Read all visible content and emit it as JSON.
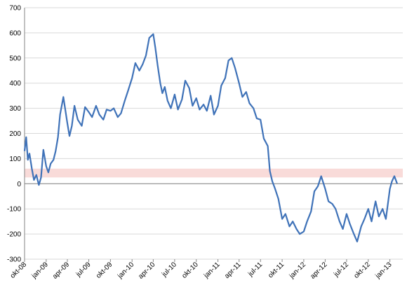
{
  "chart_data": {
    "type": "line",
    "title": "",
    "xlabel": "",
    "ylabel": "",
    "ylim": [
      -300,
      700
    ],
    "y_ticks": [
      700,
      600,
      500,
      400,
      300,
      200,
      100,
      0,
      -100,
      -200,
      -300
    ],
    "grid": "horizontal",
    "x_tick_labels": [
      "okt-08",
      "jan-09",
      "apr-09",
      "jul-09",
      "okt-09",
      "jan-10",
      "apr-10",
      "jul-10",
      "okt-10",
      "jan-11",
      "apr-11",
      "jul-11",
      "okt-11",
      "jan-12",
      "apr-12",
      "jul-12",
      "okt-12",
      "jan-13"
    ],
    "band": {
      "from": 25,
      "to": 60,
      "color": "#f8d7d5"
    },
    "colors": {
      "line": "#3f72b8",
      "axis": "#868686",
      "grid": "#d9d9d9"
    },
    "series": [
      {
        "x": [
          "2008-10-01",
          "2008-10-08",
          "2008-10-15",
          "2008-10-22",
          "2008-11-01",
          "2008-11-10",
          "2008-11-20",
          "2008-12-01",
          "2008-12-10",
          "2008-12-20",
          "2009-01-01",
          "2009-01-10",
          "2009-01-20",
          "2009-02-01",
          "2009-02-10",
          "2009-02-20",
          "2009-03-01",
          "2009-03-15",
          "2009-04-01",
          "2009-04-10",
          "2009-04-20",
          "2009-05-01",
          "2009-05-15",
          "2009-06-01",
          "2009-06-15",
          "2009-07-01",
          "2009-07-15",
          "2009-08-01",
          "2009-08-15",
          "2009-09-01",
          "2009-09-15",
          "2009-10-01",
          "2009-10-15",
          "2009-11-01",
          "2009-11-15",
          "2009-12-01",
          "2009-12-15",
          "2010-01-01",
          "2010-01-15",
          "2010-02-01",
          "2010-02-15",
          "2010-03-01",
          "2010-03-15",
          "2010-04-01",
          "2010-04-10",
          "2010-04-20",
          "2010-05-01",
          "2010-05-10",
          "2010-05-20",
          "2010-06-01",
          "2010-06-15",
          "2010-07-01",
          "2010-07-15",
          "2010-08-01",
          "2010-08-15",
          "2010-09-01",
          "2010-09-15",
          "2010-10-01",
          "2010-10-15",
          "2010-11-01",
          "2010-11-15",
          "2010-12-01",
          "2010-12-15",
          "2011-01-01",
          "2011-01-15",
          "2011-02-01",
          "2011-02-15",
          "2011-03-01",
          "2011-03-15",
          "2011-04-01",
          "2011-04-15",
          "2011-05-01",
          "2011-05-15",
          "2011-06-01",
          "2011-06-15",
          "2011-07-01",
          "2011-07-15",
          "2011-08-01",
          "2011-08-10",
          "2011-08-20",
          "2011-09-01",
          "2011-09-15",
          "2011-10-01",
          "2011-10-15",
          "2011-11-01",
          "2011-11-15",
          "2011-12-01",
          "2011-12-15",
          "2012-01-01",
          "2012-01-15",
          "2012-02-01",
          "2012-02-15",
          "2012-03-01",
          "2012-03-15",
          "2012-04-01",
          "2012-04-15",
          "2012-05-01",
          "2012-05-15",
          "2012-06-01",
          "2012-06-15",
          "2012-07-01",
          "2012-07-15",
          "2012-08-01",
          "2012-08-15",
          "2012-09-01",
          "2012-09-15",
          "2012-10-01",
          "2012-10-15",
          "2012-11-01",
          "2012-11-15",
          "2012-12-01",
          "2012-12-15",
          "2013-01-01",
          "2013-01-10",
          "2013-01-20",
          "2013-02-01"
        ],
        "values": [
          130,
          185,
          95,
          120,
          60,
          15,
          35,
          -5,
          25,
          135,
          70,
          45,
          80,
          95,
          130,
          185,
          275,
          345,
          240,
          190,
          230,
          310,
          255,
          230,
          305,
          285,
          265,
          310,
          275,
          255,
          295,
          290,
          300,
          265,
          280,
          330,
          370,
          420,
          480,
          450,
          475,
          510,
          580,
          595,
          540,
          470,
          400,
          360,
          385,
          330,
          300,
          355,
          295,
          335,
          410,
          380,
          310,
          340,
          295,
          315,
          290,
          350,
          275,
          310,
          390,
          420,
          490,
          500,
          460,
          400,
          345,
          365,
          320,
          300,
          260,
          255,
          180,
          150,
          50,
          10,
          -20,
          -60,
          -140,
          -120,
          -170,
          -150,
          -180,
          -200,
          -190,
          -150,
          -110,
          -30,
          -10,
          30,
          -20,
          -70,
          -80,
          -100,
          -150,
          -180,
          -120,
          -160,
          -200,
          -230,
          -170,
          -140,
          -100,
          -150,
          -70,
          -130,
          -100,
          -140,
          -20,
          10,
          30,
          0
        ]
      }
    ]
  }
}
